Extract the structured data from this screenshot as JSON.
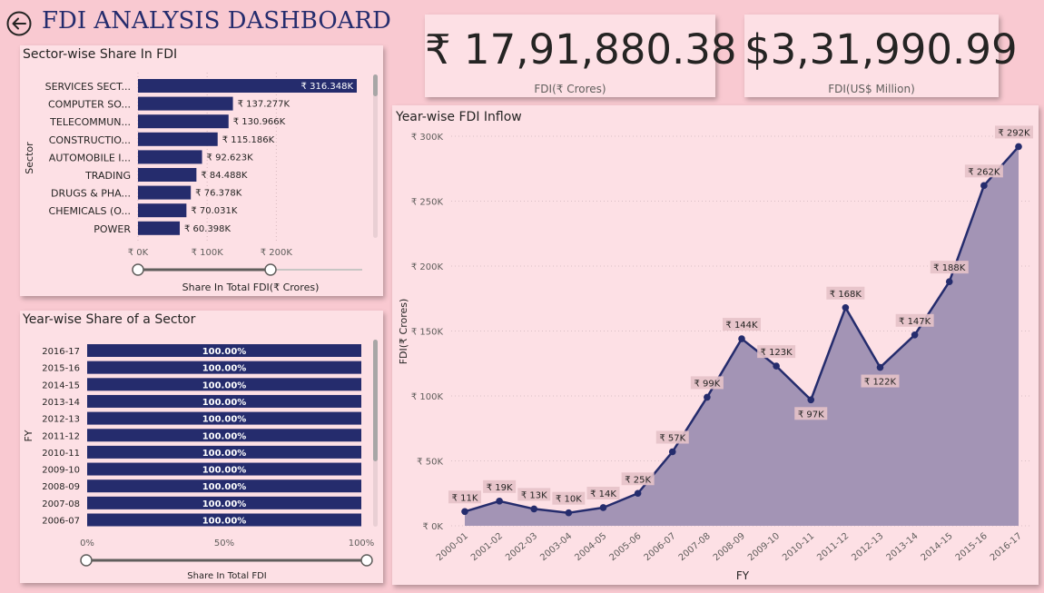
{
  "header": {
    "title": "FDI ANALYSIS DASHBOARD"
  },
  "kpi": [
    {
      "value": "₹ 17,91,880.38",
      "label": "FDI(₹ Crores)"
    },
    {
      "value": "$3,31,990.99",
      "label": "FDI(US$ Million)"
    }
  ],
  "colors": {
    "bar": "#252c6d",
    "area": "#a394b5",
    "line": "#252c6d",
    "background": "#f9c9d1",
    "panel": "#fde0e5"
  },
  "chart_data": [
    {
      "type": "bar",
      "orientation": "horizontal",
      "title": "Sector-wise Share In FDI",
      "xlabel": "Share In Total FDI(₹ Crores)",
      "ylabel": "Sector",
      "categories": [
        "SERVICES SECT...",
        "COMPUTER SO...",
        "TELECOMMUN...",
        "CONSTRUCTIO...",
        "AUTOMOBILE I...",
        "TRADING",
        "DRUGS & PHA...",
        "CHEMICALS (O...",
        "POWER"
      ],
      "values": [
        316348,
        137277,
        130966,
        115186,
        92623,
        84488,
        76378,
        70031,
        60398
      ],
      "data_labels": [
        "₹ 316.348K",
        "₹ 137.277K",
        "₹ 130.966K",
        "₹ 115.186K",
        "₹ 92.623K",
        "₹ 84.488K",
        "₹ 76.378K",
        "₹ 70.031K",
        "₹ 60.398K"
      ],
      "xticks": [
        0,
        100000,
        200000
      ],
      "xtick_labels": [
        "₹ 0K",
        "₹ 100K",
        "₹ 200K"
      ],
      "xlim": [
        0,
        316348
      ]
    },
    {
      "type": "bar",
      "orientation": "horizontal",
      "stacked": "100%",
      "title": "Year-wise Share of a Sector",
      "xlabel": "Share In Total FDI",
      "ylabel": "FY",
      "categories": [
        "2016-17",
        "2015-16",
        "2014-15",
        "2013-14",
        "2012-13",
        "2011-12",
        "2010-11",
        "2009-10",
        "2008-09",
        "2007-08",
        "2006-07"
      ],
      "values": [
        100,
        100,
        100,
        100,
        100,
        100,
        100,
        100,
        100,
        100,
        100
      ],
      "data_labels": [
        "100.00%",
        "100.00%",
        "100.00%",
        "100.00%",
        "100.00%",
        "100.00%",
        "100.00%",
        "100.00%",
        "100.00%",
        "100.00%",
        "100.00%"
      ],
      "xticks": [
        0,
        50,
        100
      ],
      "xtick_labels": [
        "0%",
        "50%",
        "100%"
      ],
      "xlim": [
        0,
        100
      ]
    },
    {
      "type": "area",
      "title": "Year-wise FDI Inflow",
      "xlabel": "FY",
      "ylabel": "FDI(₹ Crores)",
      "categories": [
        "2000-01",
        "2001-02",
        "2002-03",
        "2003-04",
        "2004-05",
        "2005-06",
        "2006-07",
        "2007-08",
        "2008-09",
        "2009-10",
        "2010-11",
        "2011-12",
        "2012-13",
        "2013-14",
        "2014-15",
        "2015-16",
        "2016-17"
      ],
      "values": [
        11000,
        19000,
        13000,
        10000,
        14000,
        25000,
        57000,
        99000,
        144000,
        123000,
        97000,
        168000,
        122000,
        147000,
        188000,
        262000,
        292000
      ],
      "data_labels": [
        "₹ 11K",
        "₹ 19K",
        "₹ 13K",
        "₹ 10K",
        "₹ 14K",
        "₹ 25K",
        "₹ 57K",
        "₹ 99K",
        "₹ 144K",
        "₹ 123K",
        "₹ 97K",
        "₹ 168K",
        "₹ 122K",
        "₹ 147K",
        "₹ 188K",
        "₹ 262K",
        "₹ 292K"
      ],
      "label_below": [
        false,
        false,
        false,
        false,
        false,
        false,
        false,
        false,
        false,
        false,
        true,
        false,
        true,
        false,
        false,
        false,
        false
      ],
      "yticks": [
        0,
        50000,
        100000,
        150000,
        200000,
        250000,
        300000
      ],
      "ytick_labels": [
        "₹ 0K",
        "₹ 50K",
        "₹ 100K",
        "₹ 150K",
        "₹ 200K",
        "₹ 250K",
        "₹ 300K"
      ],
      "ylim": [
        0,
        300000
      ],
      "grid": true
    }
  ]
}
